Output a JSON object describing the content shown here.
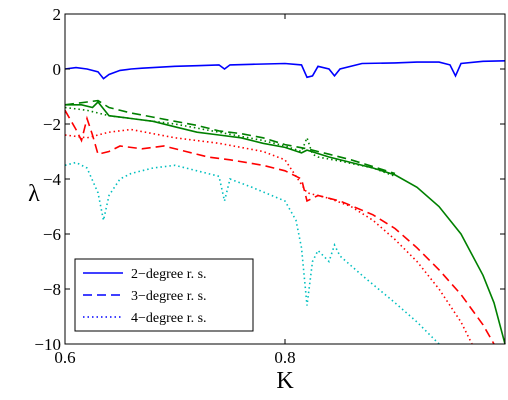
{
  "chart_data": {
    "type": "line",
    "title": "",
    "xlabel": "K",
    "ylabel": "λ",
    "xlim": [
      0.6,
      1.0
    ],
    "ylim": [
      -10,
      2
    ],
    "xticks": [
      0.6,
      0.8
    ],
    "xtick_labels": [
      "0.6",
      "0.8"
    ],
    "yticks": [
      2,
      0,
      -2,
      -4,
      -6,
      -8,
      -10
    ],
    "ytick_labels": [
      "2",
      "0",
      "−2",
      "−4",
      "−6",
      "−8",
      "−10"
    ],
    "grid": false,
    "legend": {
      "placement": "bottom-left",
      "entries": [
        {
          "label": "2−degree r. s.",
          "style": "solid",
          "color": "#0000ff"
        },
        {
          "label": "3−degree r. s.",
          "style": "dashed",
          "color": "#0000ff"
        },
        {
          "label": "4−degree r. s.",
          "style": "dotted",
          "color": "#0000ff"
        }
      ]
    },
    "series": [
      {
        "style": "solid",
        "color": "#0000ff",
        "x": [
          0.6,
          0.61,
          0.62,
          0.63,
          0.635,
          0.64,
          0.65,
          0.66,
          0.67,
          0.68,
          0.7,
          0.72,
          0.74,
          0.745,
          0.75,
          0.77,
          0.8,
          0.815,
          0.82,
          0.825,
          0.83,
          0.84,
          0.845,
          0.85,
          0.87,
          0.9,
          0.92,
          0.94,
          0.95,
          0.955,
          0.96,
          0.98,
          1.0
        ],
        "y": [
          0.0,
          0.05,
          0.0,
          -0.1,
          -0.35,
          -0.2,
          -0.05,
          0.0,
          0.03,
          0.05,
          0.1,
          0.12,
          0.15,
          0.0,
          0.15,
          0.17,
          0.2,
          0.15,
          -0.3,
          -0.25,
          0.1,
          0.0,
          -0.25,
          0.0,
          0.2,
          0.22,
          0.25,
          0.25,
          0.15,
          -0.25,
          0.2,
          0.28,
          0.3
        ]
      },
      {
        "style": "solid",
        "color": "#008000",
        "x": [
          0.6,
          0.615,
          0.625,
          0.63,
          0.64,
          0.66,
          0.68,
          0.7,
          0.72,
          0.74,
          0.76,
          0.78,
          0.8,
          0.815,
          0.82,
          0.84,
          0.86,
          0.88,
          0.9,
          0.92,
          0.94,
          0.96,
          0.98,
          0.99,
          1.0
        ],
        "y": [
          -1.3,
          -1.3,
          -1.4,
          -1.2,
          -1.7,
          -1.8,
          -1.9,
          -2.1,
          -2.3,
          -2.4,
          -2.5,
          -2.7,
          -2.85,
          -3.05,
          -2.95,
          -3.2,
          -3.4,
          -3.6,
          -3.85,
          -4.3,
          -5.0,
          -6.0,
          -7.5,
          -8.5,
          -10.0
        ]
      },
      {
        "style": "dashed",
        "color": "#008000",
        "x": [
          0.6,
          0.62,
          0.63,
          0.64,
          0.66,
          0.68,
          0.7,
          0.72,
          0.74,
          0.76,
          0.78,
          0.8,
          0.82,
          0.84,
          0.86,
          0.88,
          0.9
        ],
        "y": [
          -1.3,
          -1.2,
          -1.15,
          -1.4,
          -1.6,
          -1.75,
          -1.9,
          -2.05,
          -2.25,
          -2.35,
          -2.5,
          -2.75,
          -2.9,
          -3.1,
          -3.3,
          -3.55,
          -3.8
        ]
      },
      {
        "style": "dotted",
        "color": "#008000",
        "x": [
          0.6,
          0.62,
          0.64,
          0.66,
          0.7,
          0.74,
          0.78,
          0.8,
          0.815,
          0.82,
          0.825,
          0.83,
          0.85,
          0.88,
          0.9
        ],
        "y": [
          -1.4,
          -1.5,
          -1.7,
          -1.8,
          -2.0,
          -2.3,
          -2.6,
          -2.8,
          -3.0,
          -2.5,
          -3.1,
          -3.2,
          -3.35,
          -3.6,
          -3.9
        ]
      },
      {
        "style": "dashed",
        "color": "#ff0000",
        "x": [
          0.6,
          0.61,
          0.615,
          0.62,
          0.625,
          0.63,
          0.64,
          0.65,
          0.67,
          0.69,
          0.71,
          0.73,
          0.75,
          0.78,
          0.8,
          0.815,
          0.82,
          0.83,
          0.85,
          0.88,
          0.9,
          0.92,
          0.94,
          0.96,
          0.98,
          0.99
        ],
        "y": [
          -1.5,
          -2.2,
          -2.6,
          -1.8,
          -2.4,
          -3.1,
          -3.0,
          -2.8,
          -2.9,
          -2.8,
          -3.0,
          -3.2,
          -3.3,
          -3.5,
          -3.7,
          -4.0,
          -4.8,
          -4.6,
          -4.8,
          -5.3,
          -5.8,
          -6.5,
          -7.3,
          -8.2,
          -9.3,
          -10.0
        ]
      },
      {
        "style": "dotted",
        "color": "#ff0000",
        "x": [
          0.6,
          0.62,
          0.64,
          0.66,
          0.7,
          0.74,
          0.78,
          0.8,
          0.82,
          0.84,
          0.86,
          0.88,
          0.9,
          0.92,
          0.94,
          0.96,
          0.97
        ],
        "y": [
          -2.4,
          -2.5,
          -2.3,
          -2.2,
          -2.5,
          -2.7,
          -3.0,
          -3.3,
          -4.5,
          -4.7,
          -5.0,
          -5.5,
          -6.2,
          -7.0,
          -8.0,
          -9.2,
          -10.0
        ]
      },
      {
        "style": "dotted",
        "color": "#00bfbf",
        "x": [
          0.6,
          0.61,
          0.62,
          0.63,
          0.635,
          0.64,
          0.65,
          0.66,
          0.68,
          0.7,
          0.72,
          0.74,
          0.745,
          0.75,
          0.77,
          0.8,
          0.81,
          0.815,
          0.82,
          0.825,
          0.83,
          0.84,
          0.845,
          0.85,
          0.87,
          0.9,
          0.92,
          0.94
        ],
        "y": [
          -3.5,
          -3.4,
          -3.6,
          -4.5,
          -5.5,
          -4.6,
          -4.0,
          -3.8,
          -3.6,
          -3.5,
          -3.7,
          -3.9,
          -4.8,
          -4.0,
          -4.3,
          -4.8,
          -5.5,
          -6.5,
          -8.6,
          -7.0,
          -6.6,
          -7.0,
          -6.4,
          -6.8,
          -7.5,
          -8.5,
          -9.2,
          -10.0
        ]
      }
    ]
  }
}
